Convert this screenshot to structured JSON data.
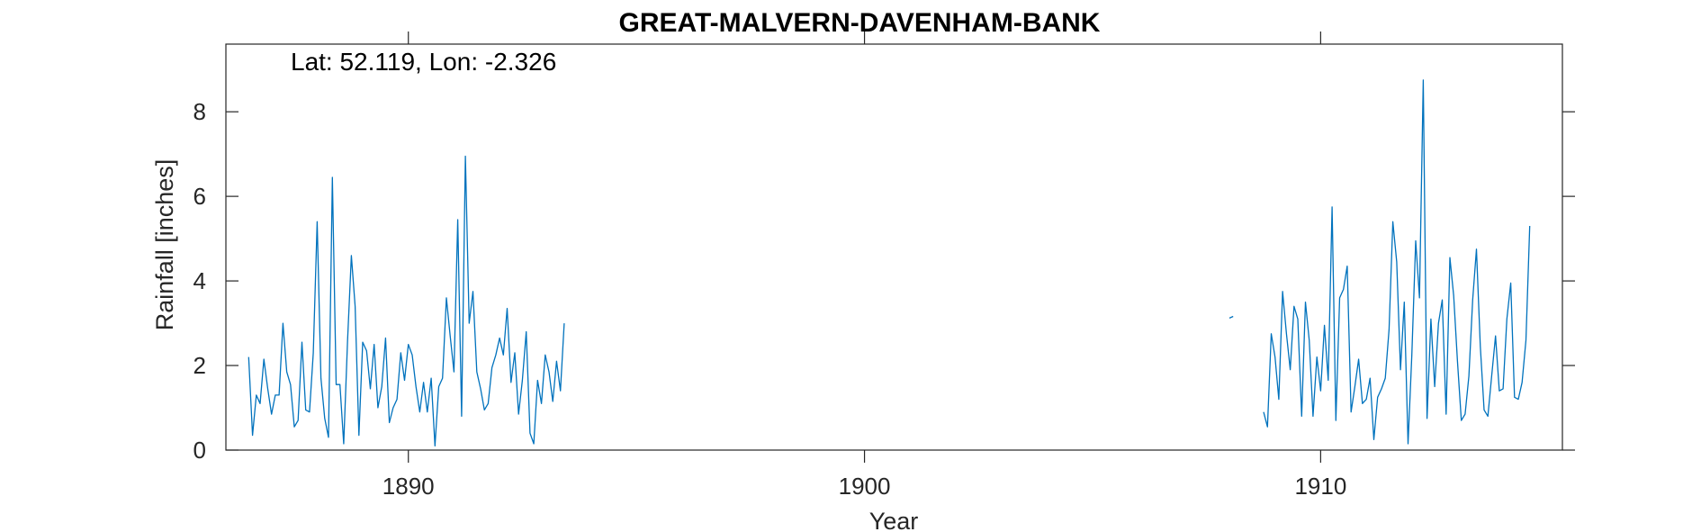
{
  "chart_data": {
    "type": "line",
    "title": "GREAT-MALVERN-DAVENHAM-BANK",
    "xlabel": "Year",
    "ylabel": "Rainfall [inches]",
    "annotation": "Lat: 52.119, Lon: -2.326",
    "xlim": [
      1886,
      1915.3
    ],
    "ylim": [
      0,
      9.6
    ],
    "xticks": [
      1890,
      1900,
      1910
    ],
    "yticks": [
      0,
      2,
      4,
      6,
      8
    ],
    "grid": false,
    "line_color": "#0072BD",
    "series": [
      {
        "segments": [
          {
            "x_start": 1886.5,
            "x_step": 0.0833333,
            "y": [
              2.2,
              0.35,
              1.3,
              1.1,
              2.15,
              1.45,
              0.85,
              1.3,
              1.3,
              3.0,
              1.85,
              1.55,
              0.55,
              0.7,
              2.55,
              0.95,
              0.9,
              2.3,
              5.4,
              1.7,
              0.75,
              0.3,
              6.45,
              1.55,
              1.55,
              0.15,
              2.6,
              4.6,
              3.4,
              0.35,
              2.55,
              2.35,
              1.45,
              2.5,
              1.0,
              1.5,
              2.65,
              0.65,
              1.0,
              1.2,
              2.3,
              1.65,
              2.5,
              2.25,
              1.5,
              0.9,
              1.6,
              0.9,
              1.7,
              0.1,
              1.5,
              1.7,
              3.6,
              2.7,
              1.85,
              5.45,
              0.8,
              6.95,
              3.0,
              3.75,
              1.85,
              1.45,
              0.95,
              1.1,
              1.95,
              2.25,
              2.65,
              2.25,
              3.35,
              1.6,
              2.3,
              0.85,
              1.65,
              2.8,
              0.4,
              0.15,
              1.65,
              1.1,
              2.25,
              1.85,
              1.15,
              2.1,
              1.4,
              3.0
            ]
          },
          {
            "x_start": 1908.0,
            "x_step": 0.0833333,
            "y": [
              3.12,
              3.16
            ]
          },
          {
            "x_start": 1908.75,
            "x_step": 0.0833333,
            "y": [
              0.9,
              0.55,
              2.75,
              2.2,
              1.2,
              3.75,
              2.75,
              1.9,
              3.4,
              3.1,
              0.8,
              3.5,
              2.6,
              0.8,
              2.2,
              1.4,
              2.95,
              1.65,
              5.75,
              0.7,
              3.6,
              3.8,
              4.35,
              0.9,
              1.5,
              2.15,
              1.1,
              1.2,
              1.7,
              0.25,
              1.25,
              1.45,
              1.7,
              2.85,
              5.4,
              4.45,
              1.9,
              3.5,
              0.15,
              2.25,
              4.95,
              3.6,
              8.75,
              0.75,
              3.1,
              1.5,
              3.0,
              3.55,
              0.85,
              4.55,
              3.65,
              2.1,
              0.7,
              0.85,
              1.75,
              3.55,
              4.75,
              2.45,
              0.95,
              0.8,
              1.75,
              2.7,
              1.4,
              1.45,
              3.1,
              3.95,
              1.25,
              1.2,
              1.6,
              2.6,
              5.3
            ]
          }
        ]
      }
    ]
  }
}
